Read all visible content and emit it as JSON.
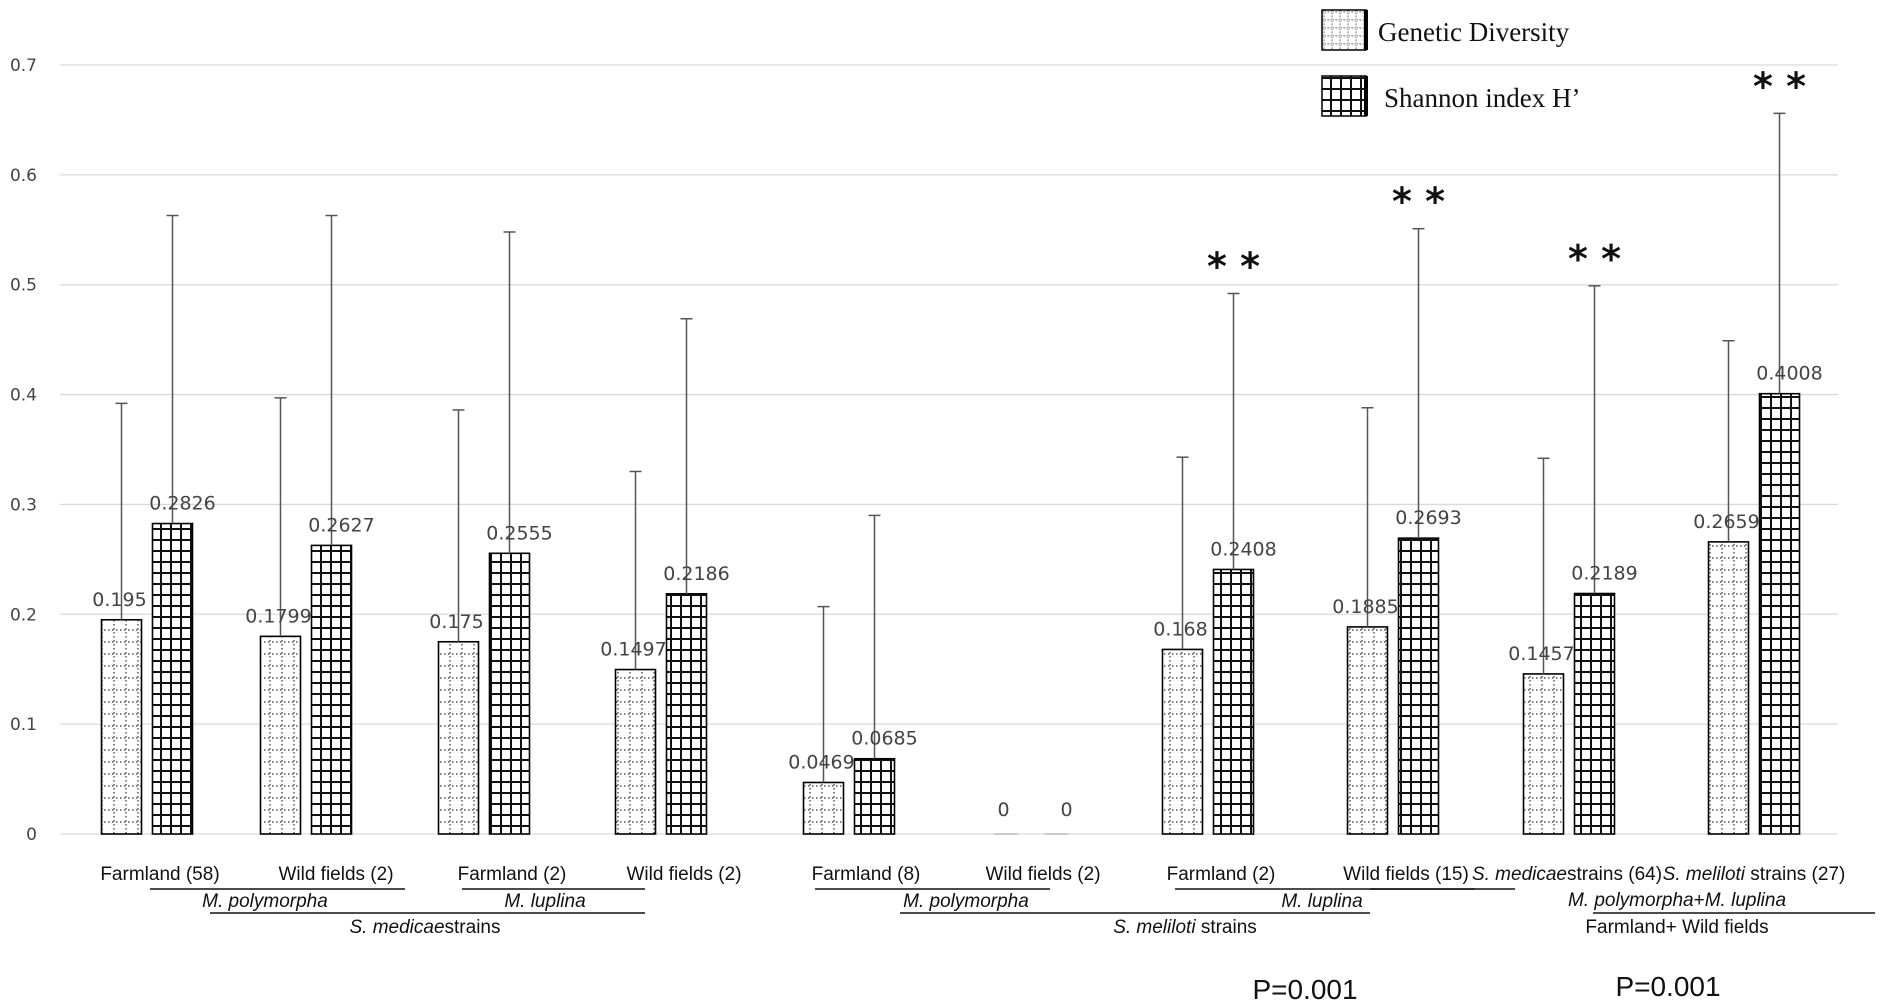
{
  "chart_data": {
    "type": "bar",
    "title": "",
    "xlabel": "",
    "ylabel": "",
    "ylim": [
      0,
      0.7
    ],
    "yticks": [
      "0",
      "0.1",
      "0.2",
      "0.3",
      "0.4",
      "0.5",
      "0.6",
      "0.7"
    ],
    "grid": true,
    "legend_position": "top-right",
    "categories": [
      "Farmland (58)",
      "Wild fields (2)",
      "Farmland (2)",
      "Wild fields (2)",
      "Farmland (8)",
      "Wild fields (2)",
      "Farmland (2)",
      "Wild fields (15)",
      "S. medicae strains (64)",
      "S. meliloti strains (27)"
    ],
    "series": [
      {
        "name": "Genetic Diversity",
        "values": [
          0.195,
          0.1799,
          0.175,
          0.1497,
          0.0469,
          0,
          0.168,
          0.1885,
          0.1457,
          0.2659
        ],
        "labels": [
          "0.195",
          "0.1799",
          "0.175",
          "0.1497",
          "0.0469",
          "0",
          "0.168",
          "0.1885",
          "0.1457",
          "0.2659"
        ],
        "error_upper": [
          0.392,
          0.397,
          0.386,
          0.33,
          0.207,
          0,
          0.343,
          0.388,
          0.342,
          0.449
        ]
      },
      {
        "name": "Shannon index H’",
        "values": [
          0.2826,
          0.2627,
          0.2555,
          0.2186,
          0.0685,
          0,
          0.2408,
          0.2693,
          0.2189,
          0.4008
        ],
        "labels": [
          "0.2826",
          "0.2627",
          "0.2555",
          "0.2186",
          "0.0685",
          "0",
          "0.2408",
          "0.2693",
          "0.2189",
          "0.4008"
        ],
        "error_upper": [
          0.563,
          0.563,
          0.548,
          0.469,
          0.29,
          0,
          0.492,
          0.551,
          0.499,
          0.656
        ]
      }
    ],
    "significance": [
      {
        "category_index": 6,
        "text": "* *"
      },
      {
        "category_index": 7,
        "text": "* *"
      },
      {
        "category_index": 8,
        "text": "* *"
      },
      {
        "category_index": 9,
        "text": "* *"
      }
    ],
    "category_labels": [
      {
        "parts": [
          {
            "t": "Farmland (58)",
            "i": false
          }
        ]
      },
      {
        "parts": [
          {
            "t": "Wild fields (2)",
            "i": false
          }
        ]
      },
      {
        "parts": [
          {
            "t": "Farmland (2)",
            "i": false
          }
        ]
      },
      {
        "parts": [
          {
            "t": "Wild fields (2)",
            "i": false
          }
        ]
      },
      {
        "parts": [
          {
            "t": "Farmland (8)",
            "i": false
          }
        ]
      },
      {
        "parts": [
          {
            "t": "Wild fields (2)",
            "i": false
          }
        ]
      },
      {
        "parts": [
          {
            "t": "Farmland (2)",
            "i": false
          }
        ]
      },
      {
        "parts": [
          {
            "t": "Wild fields (15)",
            "i": false
          }
        ]
      },
      {
        "parts": [
          {
            "t": "S. medicae",
            "i": true
          },
          {
            "t": "strains (64)",
            "i": false
          }
        ]
      },
      {
        "parts": [
          {
            "t": "S. meliloti",
            "i": true
          },
          {
            "t": " strains (27)",
            "i": false
          }
        ]
      }
    ],
    "group_labels": [
      {
        "parts": [
          {
            "t": "M. polymorpha",
            "i": true
          }
        ]
      },
      {
        "parts": [
          {
            "t": "M. luplina",
            "i": true
          }
        ]
      },
      {
        "parts": [
          {
            "t": "S. medicae",
            "i": true
          },
          {
            "t": "strains",
            "i": false
          }
        ]
      },
      {
        "parts": [
          {
            "t": "M. polymorpha",
            "i": true
          }
        ]
      },
      {
        "parts": [
          {
            "t": "M. luplina",
            "i": true
          }
        ]
      },
      {
        "parts": [
          {
            "t": "S. meliloti",
            "i": true
          },
          {
            "t": " strains",
            "i": false
          }
        ]
      },
      {
        "parts": [
          {
            "t": "M. polymorpha",
            "i": true
          },
          {
            "t": "+",
            "i": false
          },
          {
            "t": "M. luplina",
            "i": true
          }
        ]
      },
      {
        "parts": [
          {
            "t": "Farmland+ Wild fields",
            "i": false
          }
        ]
      }
    ],
    "p_values": [
      "P=0.001",
      "P=0.001"
    ]
  },
  "colors": {
    "gridline": "#d9d9d9",
    "bar_stroke": "#000000",
    "error_bar": "#555555",
    "text": "#111111"
  }
}
